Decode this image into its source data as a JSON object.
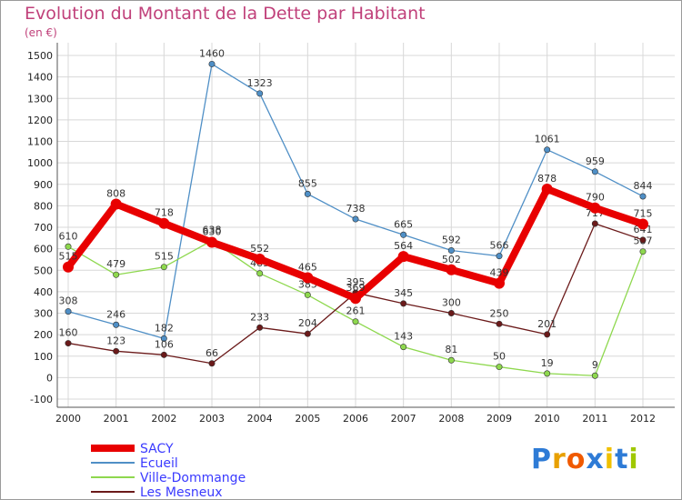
{
  "chart_data": {
    "type": "line",
    "title": "Evolution du Montant de la Dette par Habitant",
    "unit_label": "(en €)",
    "categories": [
      "2000",
      "2001",
      "2002",
      "2003",
      "2004",
      "2005",
      "2006",
      "2007",
      "2008",
      "2009",
      "2010",
      "2011",
      "2012"
    ],
    "ylim": [
      -100,
      1500
    ],
    "yticks": [
      -100,
      0,
      100,
      200,
      300,
      400,
      500,
      600,
      700,
      800,
      900,
      1000,
      1100,
      1200,
      1300,
      1400,
      1500
    ],
    "grid": true,
    "legend_position": "bottom-left",
    "series": [
      {
        "name": "SACY",
        "color": "#e80000",
        "values": [
          515,
          808,
          718,
          630,
          552,
          465,
          369,
          564,
          502,
          439,
          878,
          790,
          715
        ]
      },
      {
        "name": "Ecueil",
        "color": "#4f8fc6",
        "values": [
          308,
          246,
          182,
          1460,
          1323,
          855,
          738,
          665,
          592,
          566,
          1061,
          959,
          844
        ]
      },
      {
        "name": "Ville-Dommange",
        "color": "#8ed84e",
        "values": [
          610,
          479,
          515,
          638,
          485,
          385,
          261,
          143,
          81,
          50,
          19,
          9,
          587
        ]
      },
      {
        "name": "Les Mesneux",
        "color": "#6b1a1a",
        "values": [
          160,
          123,
          106,
          66,
          233,
          204,
          395,
          345,
          300,
          250,
          201,
          717,
          641
        ]
      }
    ]
  },
  "logo": {
    "text": "Proxiti"
  }
}
